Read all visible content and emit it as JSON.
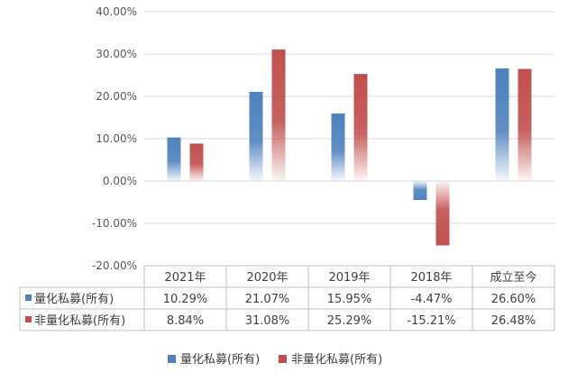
{
  "chart_data": {
    "type": "bar",
    "categories": [
      "2021年",
      "2020年",
      "2019年",
      "2018年",
      "成立至今"
    ],
    "series": [
      {
        "name": "量化私募(所有)",
        "values": [
          10.29,
          21.07,
          15.95,
          -4.47,
          26.6
        ],
        "labels": [
          "10.29%",
          "21.07%",
          "15.95%",
          "-4.47%",
          "26.60%"
        ],
        "color": "#4f81bd"
      },
      {
        "name": "非量化私募(所有)",
        "values": [
          8.84,
          31.08,
          25.29,
          -15.21,
          26.48
        ],
        "labels": [
          "8.84%",
          "31.08%",
          "25.29%",
          "-15.21%",
          "26.48%"
        ],
        "color": "#c0504d"
      }
    ],
    "yticks": [
      "40.00%",
      "30.00%",
      "20.00%",
      "10.00%",
      "0.00%",
      "-10.00%",
      "-20.00%"
    ],
    "ylim": [
      -20,
      40
    ],
    "ystep": 10,
    "unit": "%",
    "grid": true,
    "legend": "bottom",
    "data_table": true,
    "bar_fill": "gradient-fade-toward-zero",
    "grid_color": "#d9d9d9",
    "table_border_color": "#bfbfbf"
  }
}
